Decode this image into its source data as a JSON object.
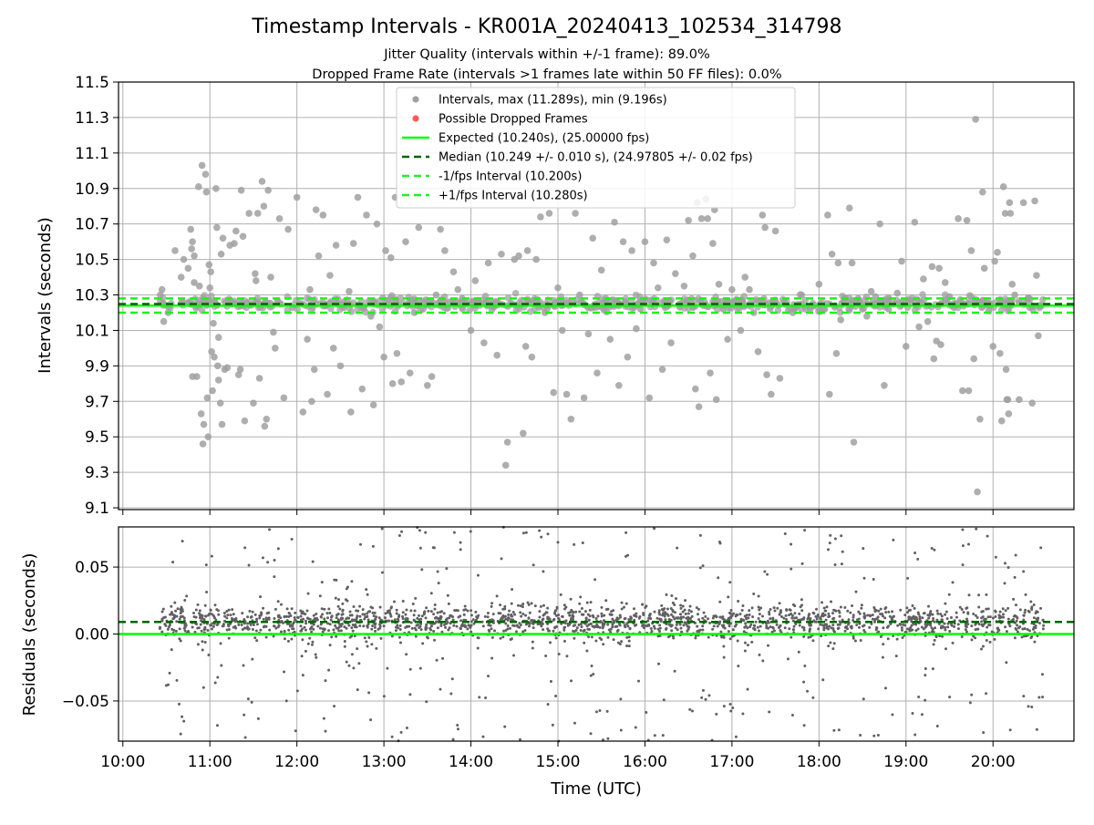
{
  "figure": {
    "title": "Timestamp Intervals - KR001A_20240413_102534_314798",
    "subtitle_1": "Jitter Quality (intervals within +/-1 frame): 89.0%",
    "subtitle_2": "Dropped Frame Rate (intervals >1 frames late within 50 FF files): 0.0%"
  },
  "colors": {
    "intervals": "#a0a0a0",
    "dropped": "#ff5a5a",
    "expected": "#00ff00",
    "median": "#006400",
    "fps_bounds": "#22ee22",
    "residual_points": "#606060",
    "grid": "#b0b0b0"
  },
  "chart_data": [
    {
      "type": "scatter",
      "panel": "top",
      "xlabel": "",
      "ylabel": "Intervals (seconds)",
      "x_unit": "hours (UTC)",
      "xlim": [
        9.95,
        20.93
      ],
      "ylim": [
        9.09,
        11.5
      ],
      "yticks": [
        9.1,
        9.3,
        9.5,
        9.7,
        9.9,
        10.1,
        10.3,
        10.5,
        10.7,
        10.9,
        11.1,
        11.3,
        11.5
      ],
      "ytick_labels": [
        "9.1",
        "9.3",
        "9.5",
        "9.7",
        "9.9",
        "10.1",
        "10.3",
        "10.5",
        "10.7",
        "10.9",
        "11.1",
        "11.3",
        "11.5"
      ],
      "grid": true,
      "legend_position": "upper center",
      "legend": [
        {
          "label": "Intervals, max (11.289s), min (9.196s)",
          "kind": "marker",
          "color_key": "intervals"
        },
        {
          "label": "Possible Dropped Frames",
          "kind": "marker",
          "color_key": "dropped"
        },
        {
          "label": "Expected (10.240s), (25.00000 fps)",
          "kind": "solid",
          "color_key": "expected"
        },
        {
          "label": "Median (10.249 +/- 0.010 s), (24.97805 +/- 0.02 fps)",
          "kind": "dashed",
          "color_key": "median"
        },
        {
          "label": "-1/fps Interval (10.200s)",
          "kind": "dashed",
          "color_key": "fps_bounds"
        },
        {
          "label": "+1/fps Interval (10.280s)",
          "kind": "dashed",
          "color_key": "fps_bounds"
        }
      ],
      "reference_lines": {
        "expected": 10.24,
        "median": 10.249,
        "minus_one_fps": 10.2,
        "plus_one_fps": 10.28
      },
      "stats": {
        "max": 11.289,
        "min": 9.196
      },
      "points": [
        [
          10.43,
          10.3
        ],
        [
          10.45,
          10.33
        ],
        [
          10.47,
          10.15
        ],
        [
          10.52,
          10.2
        ],
        [
          10.6,
          10.55
        ],
        [
          10.67,
          10.4
        ],
        [
          10.7,
          10.5
        ],
        [
          10.75,
          10.45
        ],
        [
          10.78,
          10.67
        ],
        [
          10.79,
          10.56
        ],
        [
          10.8,
          10.6
        ],
        [
          10.82,
          10.52
        ],
        [
          10.82,
          10.37
        ],
        [
          10.8,
          9.84
        ],
        [
          10.85,
          9.84
        ],
        [
          10.87,
          10.91
        ],
        [
          10.88,
          10.35
        ],
        [
          10.9,
          9.63
        ],
        [
          10.91,
          11.03
        ],
        [
          10.92,
          9.46
        ],
        [
          10.93,
          9.57
        ],
        [
          10.95,
          10.98
        ],
        [
          10.96,
          10.88
        ],
        [
          10.97,
          9.72
        ],
        [
          10.98,
          9.5
        ],
        [
          10.99,
          10.47
        ],
        [
          11.0,
          10.34
        ],
        [
          11.01,
          10.43
        ],
        [
          11.02,
          9.98
        ],
        [
          11.03,
          9.76
        ],
        [
          11.04,
          10.14
        ],
        [
          11.05,
          9.95
        ],
        [
          11.06,
          10.26
        ],
        [
          11.07,
          10.9
        ],
        [
          11.08,
          10.68
        ],
        [
          11.09,
          9.9
        ],
        [
          11.1,
          9.82
        ],
        [
          11.1,
          10.06
        ],
        [
          11.12,
          9.69
        ],
        [
          11.13,
          10.53
        ],
        [
          11.14,
          9.57
        ],
        [
          11.15,
          10.62
        ],
        [
          11.17,
          9.88
        ],
        [
          11.2,
          9.89
        ],
        [
          11.23,
          10.58
        ],
        [
          11.28,
          10.59
        ],
        [
          11.3,
          10.66
        ],
        [
          11.33,
          9.85
        ],
        [
          11.35,
          9.88
        ],
        [
          11.36,
          10.89
        ],
        [
          11.38,
          10.63
        ],
        [
          11.4,
          9.59
        ],
        [
          11.45,
          10.76
        ],
        [
          11.5,
          9.69
        ],
        [
          11.52,
          10.42
        ],
        [
          11.53,
          10.38
        ],
        [
          11.55,
          10.76
        ],
        [
          11.57,
          9.83
        ],
        [
          11.6,
          10.94
        ],
        [
          11.62,
          10.8
        ],
        [
          11.63,
          9.56
        ],
        [
          11.65,
          9.6
        ],
        [
          11.67,
          10.89
        ],
        [
          11.7,
          10.4
        ],
        [
          11.73,
          10.09
        ],
        [
          11.75,
          10.0
        ],
        [
          11.8,
          10.73
        ],
        [
          11.85,
          9.72
        ],
        [
          11.9,
          10.67
        ],
        [
          11.95,
          10.23
        ],
        [
          12.0,
          10.85
        ],
        [
          12.07,
          9.64
        ],
        [
          12.12,
          10.05
        ],
        [
          12.15,
          10.33
        ],
        [
          12.17,
          9.7
        ],
        [
          12.2,
          9.88
        ],
        [
          12.22,
          10.78
        ],
        [
          12.25,
          10.52
        ],
        [
          12.3,
          10.75
        ],
        [
          12.35,
          9.74
        ],
        [
          12.38,
          10.41
        ],
        [
          12.42,
          10.0
        ],
        [
          12.45,
          10.58
        ],
        [
          12.5,
          9.9
        ],
        [
          12.55,
          10.25
        ],
        [
          12.6,
          10.32
        ],
        [
          12.62,
          9.64
        ],
        [
          12.65,
          10.59
        ],
        [
          12.7,
          10.85
        ],
        [
          12.75,
          9.77
        ],
        [
          12.8,
          10.75
        ],
        [
          12.85,
          10.18
        ],
        [
          12.88,
          9.68
        ],
        [
          12.92,
          10.7
        ],
        [
          12.95,
          10.12
        ],
        [
          13.0,
          9.95
        ],
        [
          13.02,
          10.55
        ],
        [
          13.05,
          10.27
        ],
        [
          13.08,
          10.51
        ],
        [
          13.1,
          9.8
        ],
        [
          13.13,
          10.85
        ],
        [
          13.15,
          9.97
        ],
        [
          13.2,
          9.81
        ],
        [
          13.25,
          10.6
        ],
        [
          13.3,
          9.86
        ],
        [
          13.35,
          10.2
        ],
        [
          13.4,
          10.68
        ],
        [
          13.45,
          10.22
        ],
        [
          13.5,
          9.79
        ],
        [
          13.55,
          9.84
        ],
        [
          13.6,
          10.3
        ],
        [
          13.65,
          10.67
        ],
        [
          13.7,
          10.55
        ],
        [
          13.75,
          10.26
        ],
        [
          13.8,
          10.43
        ],
        [
          13.85,
          10.33
        ],
        [
          13.9,
          10.28
        ],
        [
          13.95,
          10.25
        ],
        [
          14.0,
          10.1
        ],
        [
          14.05,
          10.38
        ],
        [
          14.15,
          10.03
        ],
        [
          14.2,
          10.48
        ],
        [
          14.3,
          9.96
        ],
        [
          14.35,
          10.53
        ],
        [
          14.4,
          9.34
        ],
        [
          14.42,
          9.47
        ],
        [
          14.5,
          10.5
        ],
        [
          14.55,
          10.52
        ],
        [
          14.6,
          9.52
        ],
        [
          14.63,
          10.01
        ],
        [
          14.65,
          10.55
        ],
        [
          14.7,
          9.95
        ],
        [
          14.75,
          10.5
        ],
        [
          14.8,
          10.74
        ],
        [
          14.85,
          10.2
        ],
        [
          14.9,
          10.76
        ],
        [
          14.95,
          9.75
        ],
        [
          15.0,
          10.34
        ],
        [
          15.05,
          10.1
        ],
        [
          15.1,
          9.74
        ],
        [
          15.15,
          9.6
        ],
        [
          15.2,
          10.76
        ],
        [
          15.25,
          10.3
        ],
        [
          15.3,
          9.72
        ],
        [
          15.35,
          10.08
        ],
        [
          15.4,
          10.62
        ],
        [
          15.45,
          9.86
        ],
        [
          15.5,
          10.44
        ],
        [
          15.55,
          10.28
        ],
        [
          15.6,
          10.05
        ],
        [
          15.65,
          10.71
        ],
        [
          15.7,
          9.79
        ],
        [
          15.75,
          10.6
        ],
        [
          15.8,
          9.95
        ],
        [
          15.85,
          10.55
        ],
        [
          15.9,
          10.11
        ],
        [
          15.95,
          10.22
        ],
        [
          16.0,
          10.6
        ],
        [
          16.05,
          9.72
        ],
        [
          16.1,
          10.48
        ],
        [
          16.15,
          10.34
        ],
        [
          16.2,
          9.88
        ],
        [
          16.25,
          10.61
        ],
        [
          16.3,
          10.03
        ],
        [
          16.35,
          10.42
        ],
        [
          16.4,
          10.25
        ],
        [
          16.45,
          10.35
        ],
        [
          16.5,
          10.72
        ],
        [
          16.55,
          10.52
        ],
        [
          16.58,
          9.77
        ],
        [
          16.6,
          10.82
        ],
        [
          16.62,
          9.67
        ],
        [
          16.65,
          10.73
        ],
        [
          16.7,
          10.84
        ],
        [
          16.72,
          10.73
        ],
        [
          16.75,
          9.86
        ],
        [
          16.78,
          10.59
        ],
        [
          16.8,
          10.78
        ],
        [
          16.82,
          9.71
        ],
        [
          16.85,
          10.36
        ],
        [
          16.9,
          10.22
        ],
        [
          16.95,
          10.05
        ],
        [
          17.0,
          10.33
        ],
        [
          17.1,
          10.1
        ],
        [
          17.15,
          10.4
        ],
        [
          17.2,
          10.33
        ],
        [
          17.25,
          10.2
        ],
        [
          17.3,
          9.98
        ],
        [
          17.35,
          10.75
        ],
        [
          17.38,
          10.68
        ],
        [
          17.4,
          9.85
        ],
        [
          17.45,
          9.74
        ],
        [
          17.5,
          10.66
        ],
        [
          17.55,
          9.83
        ],
        [
          17.6,
          10.26
        ],
        [
          17.7,
          10.2
        ],
        [
          17.8,
          10.3
        ],
        [
          17.9,
          10.22
        ],
        [
          18.0,
          10.36
        ],
        [
          18.1,
          10.75
        ],
        [
          18.12,
          9.74
        ],
        [
          18.15,
          10.53
        ],
        [
          18.2,
          9.97
        ],
        [
          18.22,
          10.48
        ],
        [
          18.25,
          10.16
        ],
        [
          18.3,
          10.28
        ],
        [
          18.35,
          10.79
        ],
        [
          18.38,
          10.48
        ],
        [
          18.4,
          9.47
        ],
        [
          18.45,
          10.28
        ],
        [
          18.5,
          10.22
        ],
        [
          18.55,
          10.18
        ],
        [
          18.6,
          10.32
        ],
        [
          18.65,
          10.29
        ],
        [
          18.7,
          10.7
        ],
        [
          18.75,
          9.79
        ],
        [
          18.8,
          10.22
        ],
        [
          18.85,
          10.25
        ],
        [
          18.9,
          10.31
        ],
        [
          18.95,
          10.49
        ],
        [
          19.0,
          10.01
        ],
        [
          19.05,
          10.27
        ],
        [
          19.1,
          10.71
        ],
        [
          19.15,
          10.12
        ],
        [
          19.2,
          10.39
        ],
        [
          19.25,
          10.15
        ],
        [
          19.3,
          10.46
        ],
        [
          19.32,
          9.94
        ],
        [
          19.35,
          10.04
        ],
        [
          19.38,
          10.45
        ],
        [
          19.4,
          10.02
        ],
        [
          19.45,
          10.37
        ],
        [
          19.5,
          10.29
        ],
        [
          19.55,
          10.23
        ],
        [
          19.6,
          10.73
        ],
        [
          19.65,
          9.76
        ],
        [
          19.7,
          10.72
        ],
        [
          19.72,
          9.76
        ],
        [
          19.75,
          10.55
        ],
        [
          19.78,
          9.94
        ],
        [
          19.8,
          11.29
        ],
        [
          19.82,
          9.19
        ],
        [
          19.85,
          9.6
        ],
        [
          19.88,
          10.88
        ],
        [
          19.9,
          10.45
        ],
        [
          19.95,
          10.21
        ],
        [
          20.0,
          10.01
        ],
        [
          20.02,
          10.49
        ],
        [
          20.05,
          10.54
        ],
        [
          20.08,
          9.97
        ],
        [
          20.1,
          9.59
        ],
        [
          20.12,
          10.91
        ],
        [
          20.14,
          10.76
        ],
        [
          20.15,
          9.88
        ],
        [
          20.16,
          9.71
        ],
        [
          20.17,
          9.71
        ],
        [
          20.18,
          9.63
        ],
        [
          20.19,
          10.82
        ],
        [
          20.2,
          10.76
        ],
        [
          20.22,
          10.36
        ],
        [
          20.25,
          10.3
        ],
        [
          20.3,
          9.71
        ],
        [
          20.35,
          10.82
        ],
        [
          20.4,
          10.28
        ],
        [
          20.42,
          10.23
        ],
        [
          20.45,
          9.69
        ],
        [
          20.48,
          10.83
        ],
        [
          20.5,
          10.41
        ],
        [
          20.52,
          10.07
        ]
      ]
    },
    {
      "type": "scatter",
      "panel": "bottom",
      "xlabel": "Time (UTC)",
      "ylabel": "Residuals (seconds)",
      "xlim": [
        9.95,
        20.93
      ],
      "ylim": [
        -0.08,
        0.08
      ],
      "xticks": [
        "10:00",
        "11:00",
        "12:00",
        "13:00",
        "14:00",
        "15:00",
        "16:00",
        "17:00",
        "18:00",
        "19:00",
        "20:00"
      ],
      "yticks": [
        -0.05,
        0.0,
        0.05
      ],
      "ytick_labels": [
        "−0.05",
        "0.00",
        "0.05"
      ],
      "grid": true,
      "reference_lines": {
        "zero": 0.0,
        "median_offset": 0.009
      },
      "data_range": [
        10.42,
        20.58
      ]
    }
  ]
}
